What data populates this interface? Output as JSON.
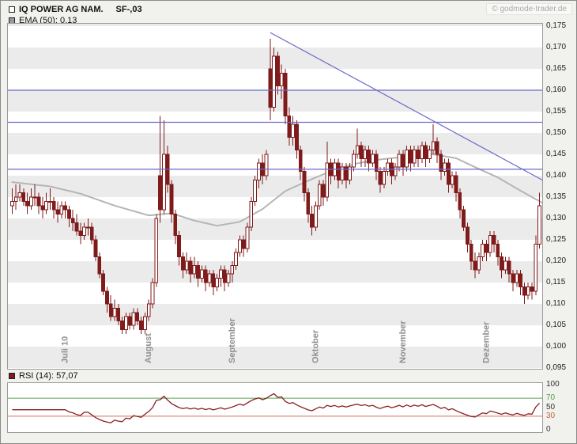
{
  "header": {
    "copyright": "© godmode-trader.de"
  },
  "chart_data": {
    "type": "candlestick",
    "title": "IQ POWER AG NAM.",
    "nominal": "SF-,03",
    "colors": {
      "candle": "#7f1b1b",
      "candle_up_fill": "#ffffff",
      "ema": "#b5b5b5",
      "trend": "#6a6ac8",
      "rsi_line": "#8b2020",
      "rsi_upper": "#57a857",
      "rsi_lower": "#d2705a",
      "stripe": "#ebebeb",
      "month_label": "#8f8f8f"
    },
    "price_axis": {
      "min": 0.095,
      "max": 0.175,
      "step": 0.005,
      "ticks": [
        {
          "v": 0.175,
          "label": "0,175"
        },
        {
          "v": 0.17,
          "label": "0,170"
        },
        {
          "v": 0.165,
          "label": "0,165"
        },
        {
          "v": 0.16,
          "label": "0,160"
        },
        {
          "v": 0.155,
          "label": "0,155"
        },
        {
          "v": 0.15,
          "label": "0,150"
        },
        {
          "v": 0.145,
          "label": "0,145"
        },
        {
          "v": 0.14,
          "label": "0,140"
        },
        {
          "v": 0.135,
          "label": "0,135"
        },
        {
          "v": 0.13,
          "label": "0,130"
        },
        {
          "v": 0.125,
          "label": "0,125"
        },
        {
          "v": 0.12,
          "label": "0,120"
        },
        {
          "v": 0.115,
          "label": "0,115"
        },
        {
          "v": 0.11,
          "label": "0,110"
        },
        {
          "v": 0.105,
          "label": "0,105"
        },
        {
          "v": 0.1,
          "label": "0,100"
        },
        {
          "v": 0.095,
          "label": "0,095"
        }
      ]
    },
    "months": [
      {
        "label": "Juli 10",
        "index": 14
      },
      {
        "label": "August",
        "index": 36
      },
      {
        "label": "September",
        "index": 58
      },
      {
        "label": "Oktober",
        "index": 80
      },
      {
        "label": "November",
        "index": 103
      },
      {
        "label": "Dezember",
        "index": 125
      }
    ],
    "resistance_lines": [
      0.16,
      0.1525,
      0.1415
    ],
    "trendline": {
      "from_index": 68,
      "from_price": 0.1735,
      "to_index": 140,
      "to_price": 0.139
    },
    "ema": {
      "period": 50,
      "value_label": "0,13",
      "legend": "EMA (50): 0,13",
      "points": [
        [
          0,
          0.1385
        ],
        [
          10,
          0.1375
        ],
        [
          18,
          0.1358
        ],
        [
          27,
          0.133
        ],
        [
          36,
          0.1307
        ],
        [
          42,
          0.1312
        ],
        [
          48,
          0.1295
        ],
        [
          54,
          0.1283
        ],
        [
          60,
          0.1292
        ],
        [
          66,
          0.1322
        ],
        [
          72,
          0.1364
        ],
        [
          79,
          0.1392
        ],
        [
          85,
          0.1414
        ],
        [
          91,
          0.1429
        ],
        [
          97,
          0.1438
        ],
        [
          104,
          0.1445
        ],
        [
          111,
          0.145
        ],
        [
          117,
          0.1441
        ],
        [
          122,
          0.142
        ],
        [
          128,
          0.1396
        ],
        [
          133,
          0.137
        ],
        [
          137,
          0.135
        ],
        [
          140,
          0.1337
        ]
      ]
    },
    "candles": [
      [
        0.133,
        0.137,
        0.131,
        0.134
      ],
      [
        0.134,
        0.138,
        0.132,
        0.135
      ],
      [
        0.135,
        0.138,
        0.134,
        0.136
      ],
      [
        0.136,
        0.137,
        0.133,
        0.134
      ],
      [
        0.134,
        0.136,
        0.131,
        0.133
      ],
      [
        0.133,
        0.137,
        0.132,
        0.135
      ],
      [
        0.135,
        0.138,
        0.133,
        0.135
      ],
      [
        0.135,
        0.136,
        0.131,
        0.133
      ],
      [
        0.133,
        0.135,
        0.13,
        0.132
      ],
      [
        0.132,
        0.136,
        0.131,
        0.134
      ],
      [
        0.134,
        0.137,
        0.132,
        0.134
      ],
      [
        0.134,
        0.135,
        0.13,
        0.132
      ],
      [
        0.132,
        0.134,
        0.129,
        0.131
      ],
      [
        0.131,
        0.134,
        0.13,
        0.133
      ],
      [
        0.133,
        0.134,
        0.13,
        0.132
      ],
      [
        0.132,
        0.133,
        0.128,
        0.13
      ],
      [
        0.13,
        0.132,
        0.127,
        0.129
      ],
      [
        0.129,
        0.131,
        0.126,
        0.127
      ],
      [
        0.127,
        0.129,
        0.124,
        0.126
      ],
      [
        0.126,
        0.129,
        0.125,
        0.128
      ],
      [
        0.128,
        0.13,
        0.126,
        0.128
      ],
      [
        0.128,
        0.129,
        0.124,
        0.125
      ],
      [
        0.125,
        0.126,
        0.12,
        0.121
      ],
      [
        0.121,
        0.122,
        0.116,
        0.117
      ],
      [
        0.117,
        0.118,
        0.112,
        0.113
      ],
      [
        0.113,
        0.114,
        0.108,
        0.11
      ],
      [
        0.11,
        0.112,
        0.106,
        0.107
      ],
      [
        0.107,
        0.111,
        0.106,
        0.109
      ],
      [
        0.109,
        0.11,
        0.105,
        0.106
      ],
      [
        0.106,
        0.107,
        0.103,
        0.104
      ],
      [
        0.104,
        0.108,
        0.103,
        0.107
      ],
      [
        0.107,
        0.108,
        0.104,
        0.105
      ],
      [
        0.105,
        0.109,
        0.104,
        0.108
      ],
      [
        0.108,
        0.109,
        0.105,
        0.106
      ],
      [
        0.106,
        0.107,
        0.103,
        0.104
      ],
      [
        0.104,
        0.108,
        0.103,
        0.107
      ],
      [
        0.107,
        0.111,
        0.106,
        0.11
      ],
      [
        0.11,
        0.116,
        0.109,
        0.115
      ],
      [
        0.115,
        0.131,
        0.114,
        0.13
      ],
      [
        0.14,
        0.154,
        0.129,
        0.132
      ],
      [
        0.132,
        0.153,
        0.131,
        0.145
      ],
      [
        0.145,
        0.147,
        0.136,
        0.138
      ],
      [
        0.138,
        0.139,
        0.129,
        0.131
      ],
      [
        0.131,
        0.132,
        0.124,
        0.126
      ],
      [
        0.126,
        0.127,
        0.119,
        0.121
      ],
      [
        0.121,
        0.122,
        0.116,
        0.118
      ],
      [
        0.118,
        0.122,
        0.117,
        0.12
      ],
      [
        0.12,
        0.121,
        0.115,
        0.117
      ],
      [
        0.117,
        0.121,
        0.116,
        0.119
      ],
      [
        0.119,
        0.12,
        0.114,
        0.116
      ],
      [
        0.116,
        0.119,
        0.115,
        0.118
      ],
      [
        0.118,
        0.119,
        0.113,
        0.115
      ],
      [
        0.115,
        0.118,
        0.114,
        0.117
      ],
      [
        0.117,
        0.118,
        0.112,
        0.114
      ],
      [
        0.114,
        0.117,
        0.113,
        0.116
      ],
      [
        0.116,
        0.119,
        0.114,
        0.118
      ],
      [
        0.118,
        0.119,
        0.113,
        0.115
      ],
      [
        0.115,
        0.118,
        0.114,
        0.117
      ],
      [
        0.117,
        0.12,
        0.115,
        0.119
      ],
      [
        0.119,
        0.123,
        0.118,
        0.122
      ],
      [
        0.122,
        0.126,
        0.121,
        0.125
      ],
      [
        0.125,
        0.126,
        0.121,
        0.123
      ],
      [
        0.123,
        0.129,
        0.122,
        0.128
      ],
      [
        0.128,
        0.135,
        0.127,
        0.134
      ],
      [
        0.134,
        0.14,
        0.133,
        0.139
      ],
      [
        0.139,
        0.144,
        0.137,
        0.143
      ],
      [
        0.143,
        0.145,
        0.138,
        0.14
      ],
      [
        0.14,
        0.146,
        0.139,
        0.145
      ],
      [
        0.165,
        0.172,
        0.153,
        0.156
      ],
      [
        0.156,
        0.17,
        0.155,
        0.168
      ],
      [
        0.168,
        0.169,
        0.159,
        0.161
      ],
      [
        0.161,
        0.166,
        0.158,
        0.164
      ],
      [
        0.164,
        0.165,
        0.152,
        0.154
      ],
      [
        0.154,
        0.156,
        0.147,
        0.149
      ],
      [
        0.149,
        0.154,
        0.147,
        0.152
      ],
      [
        0.152,
        0.153,
        0.144,
        0.146
      ],
      [
        0.146,
        0.147,
        0.139,
        0.141
      ],
      [
        0.141,
        0.142,
        0.134,
        0.136
      ],
      [
        0.136,
        0.137,
        0.129,
        0.131
      ],
      [
        0.131,
        0.133,
        0.126,
        0.128
      ],
      [
        0.128,
        0.134,
        0.127,
        0.133
      ],
      [
        0.133,
        0.139,
        0.132,
        0.138
      ],
      [
        0.138,
        0.139,
        0.133,
        0.135
      ],
      [
        0.135,
        0.148,
        0.134,
        0.143
      ],
      [
        0.143,
        0.144,
        0.138,
        0.14
      ],
      [
        0.14,
        0.144,
        0.139,
        0.143
      ],
      [
        0.143,
        0.144,
        0.137,
        0.139
      ],
      [
        0.139,
        0.143,
        0.138,
        0.142
      ],
      [
        0.142,
        0.143,
        0.137,
        0.139
      ],
      [
        0.139,
        0.143,
        0.138,
        0.142
      ],
      [
        0.142,
        0.146,
        0.141,
        0.145
      ],
      [
        0.145,
        0.151,
        0.144,
        0.147
      ],
      [
        0.147,
        0.148,
        0.142,
        0.144
      ],
      [
        0.144,
        0.147,
        0.142,
        0.146
      ],
      [
        0.146,
        0.147,
        0.141,
        0.143
      ],
      [
        0.143,
        0.146,
        0.142,
        0.145
      ],
      [
        0.145,
        0.146,
        0.139,
        0.141
      ],
      [
        0.141,
        0.142,
        0.136,
        0.138
      ],
      [
        0.138,
        0.142,
        0.137,
        0.141
      ],
      [
        0.141,
        0.144,
        0.14,
        0.143
      ],
      [
        0.143,
        0.144,
        0.138,
        0.14
      ],
      [
        0.14,
        0.143,
        0.139,
        0.142
      ],
      [
        0.142,
        0.146,
        0.141,
        0.145
      ],
      [
        0.145,
        0.146,
        0.14,
        0.142
      ],
      [
        0.142,
        0.147,
        0.141,
        0.146
      ],
      [
        0.146,
        0.147,
        0.141,
        0.143
      ],
      [
        0.143,
        0.147,
        0.142,
        0.146
      ],
      [
        0.146,
        0.147,
        0.142,
        0.144
      ],
      [
        0.144,
        0.148,
        0.143,
        0.147
      ],
      [
        0.147,
        0.148,
        0.142,
        0.144
      ],
      [
        0.144,
        0.147,
        0.143,
        0.146
      ],
      [
        0.146,
        0.152,
        0.145,
        0.148
      ],
      [
        0.148,
        0.149,
        0.143,
        0.145
      ],
      [
        0.145,
        0.146,
        0.139,
        0.141
      ],
      [
        0.141,
        0.144,
        0.14,
        0.143
      ],
      [
        0.143,
        0.144,
        0.136,
        0.138
      ],
      [
        0.138,
        0.141,
        0.137,
        0.14
      ],
      [
        0.14,
        0.141,
        0.134,
        0.136
      ],
      [
        0.136,
        0.137,
        0.13,
        0.132
      ],
      [
        0.132,
        0.133,
        0.127,
        0.128
      ],
      [
        0.128,
        0.129,
        0.122,
        0.124
      ],
      [
        0.124,
        0.125,
        0.118,
        0.12
      ],
      [
        0.12,
        0.122,
        0.116,
        0.118
      ],
      [
        0.118,
        0.122,
        0.117,
        0.121
      ],
      [
        0.121,
        0.125,
        0.12,
        0.124
      ],
      [
        0.124,
        0.125,
        0.12,
        0.122
      ],
      [
        0.122,
        0.127,
        0.121,
        0.126
      ],
      [
        0.126,
        0.127,
        0.122,
        0.124
      ],
      [
        0.124,
        0.125,
        0.119,
        0.121
      ],
      [
        0.121,
        0.122,
        0.116,
        0.118
      ],
      [
        0.118,
        0.121,
        0.117,
        0.12
      ],
      [
        0.12,
        0.121,
        0.115,
        0.117
      ],
      [
        0.117,
        0.118,
        0.113,
        0.115
      ],
      [
        0.115,
        0.118,
        0.114,
        0.117
      ],
      [
        0.117,
        0.118,
        0.112,
        0.114
      ],
      [
        0.114,
        0.115,
        0.11,
        0.112
      ],
      [
        0.112,
        0.115,
        0.111,
        0.114
      ],
      [
        0.114,
        0.115,
        0.111,
        0.113
      ],
      [
        0.113,
        0.126,
        0.112,
        0.124
      ],
      [
        0.124,
        0.136,
        0.123,
        0.133
      ]
    ],
    "rsi": {
      "legend": "RSI (14): 57,07",
      "value_label": "57,07",
      "period": 14,
      "upper": 70,
      "lower": 30,
      "ticks": [
        {
          "v": 100,
          "label": "100",
          "color": "#333333"
        },
        {
          "v": 70,
          "label": "70",
          "color": "#4a9e4a"
        },
        {
          "v": 50,
          "label": "50",
          "color": "#333333"
        },
        {
          "v": 30,
          "label": "30",
          "color": "#c2643c"
        },
        {
          "v": 0,
          "label": "0",
          "color": "#333333"
        }
      ]
    }
  }
}
